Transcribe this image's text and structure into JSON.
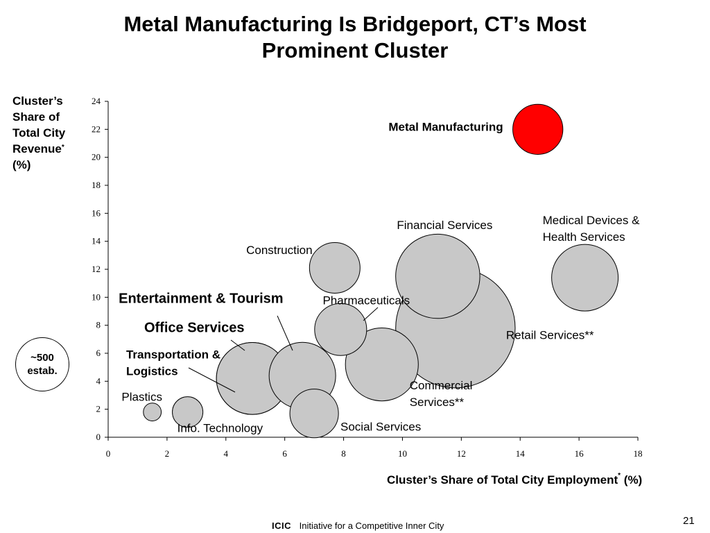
{
  "slide": {
    "title_line1": "Metal Manufacturing Is Bridgeport, CT’s Most",
    "title_line2": "Prominent Cluster",
    "page_number": "21",
    "footer_logo": "ICIC",
    "footer_text": "Initiative for a Competitive Inner City",
    "legend_text_line1": "~500",
    "legend_text_line2": "estab."
  },
  "chart_data": {
    "type": "scatter",
    "subtype": "bubble",
    "title": "Metal Manufacturing Is Bridgeport, CT’s Most Prominent Cluster",
    "ylabel_lines": [
      "Cluster’s",
      "Share of",
      "Total City",
      "Revenue"
    ],
    "ylabel_mark": "*",
    "ylabel_unit": "(%)",
    "xlabel_main": "Cluster’s Share of Total City Employment",
    "xlabel_mark": "*",
    "xlabel_unit": "(%)",
    "xlim": [
      0,
      18
    ],
    "ylim": [
      0,
      24
    ],
    "xticks": [
      "0",
      "2",
      "4",
      "6",
      "8",
      "10",
      "12",
      "14",
      "16",
      "18"
    ],
    "yticks": [
      "0",
      "2",
      "4",
      "6",
      "8",
      "10",
      "12",
      "14",
      "16",
      "18",
      "20",
      "22",
      "24"
    ],
    "grid": false,
    "legend": "left",
    "size_reference": "~500 estab.",
    "highlight_color": "#ff0000",
    "bubble_color": "#c8c8c8",
    "points": [
      {
        "label": "Metal Manufacturing",
        "x": 14.6,
        "y": 22.0,
        "size": 510,
        "highlight": true,
        "bold": true
      },
      {
        "label": "Medical Devices & Health Services",
        "x": 16.2,
        "y": 11.4,
        "size": 900
      },
      {
        "label": "Financial Services",
        "x": 11.2,
        "y": 11.5,
        "size": 1440
      },
      {
        "label": "Retail Services**",
        "x": 11.8,
        "y": 7.8,
        "size": 2900
      },
      {
        "label": "Construction",
        "x": 7.7,
        "y": 12.1,
        "size": 520
      },
      {
        "label": "Pharmaceuticals",
        "x": 7.9,
        "y": 7.7,
        "size": 550
      },
      {
        "label": "Commercial Services**",
        "x": 9.3,
        "y": 5.2,
        "size": 1080
      },
      {
        "label": "Social Services",
        "x": 7.0,
        "y": 1.7,
        "size": 480
      },
      {
        "label": "Entertainment & Tourism",
        "x": 6.6,
        "y": 4.4,
        "size": 900,
        "bold": true
      },
      {
        "label": "Office Services",
        "x": 4.9,
        "y": 4.2,
        "size": 1050,
        "bold": true
      },
      {
        "label": "Transportation & Logistics",
        "x": 4.9,
        "y": 4.2,
        "size": 1050,
        "bold": true
      },
      {
        "label": "Info. Technology",
        "x": 2.7,
        "y": 1.8,
        "size": 190
      },
      {
        "label": "Plastics",
        "x": 1.5,
        "y": 1.8,
        "size": 65
      }
    ]
  }
}
